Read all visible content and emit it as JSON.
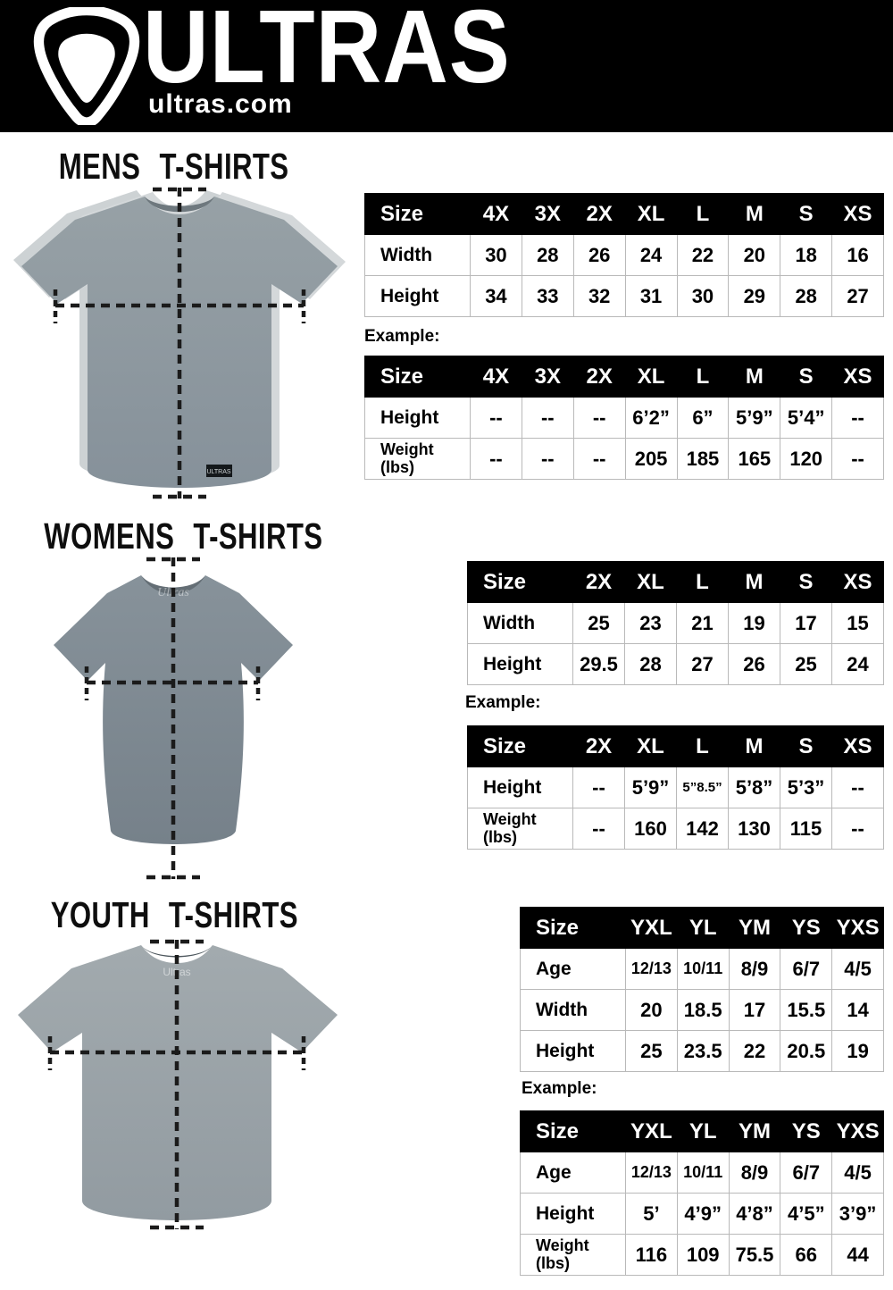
{
  "page": {
    "background": "#ffffff"
  },
  "header": {
    "brand": "ULTRAS",
    "site": "ultras.com",
    "bg_color": "#000000",
    "logo_icon": "pentagon-crest-icon"
  },
  "colors": {
    "table_header_bg": "#000000",
    "table_header_text": "#ffffff",
    "table_border": "#b9b9b9",
    "mens_shirt": "#8d979d",
    "womens_shirt": "#7e898f",
    "youth_shirt": "#99a2a7"
  },
  "sections": [
    {
      "id": "mens",
      "title": "MENS T-SHIRTS",
      "example_label": "Example:",
      "size_table": {
        "header": [
          "Size",
          "4X",
          "3X",
          "2X",
          "XL",
          "L",
          "M",
          "S",
          "XS"
        ],
        "rows": [
          {
            "label": "Width",
            "values": [
              "30",
              "28",
              "26",
              "24",
              "22",
              "20",
              "18",
              "16"
            ]
          },
          {
            "label": "Height",
            "values": [
              "34",
              "33",
              "32",
              "31",
              "30",
              "29",
              "28",
              "27"
            ]
          }
        ]
      },
      "example_table": {
        "header": [
          "Size",
          "4X",
          "3X",
          "2X",
          "XL",
          "L",
          "M",
          "S",
          "XS"
        ],
        "rows": [
          {
            "label": "Height",
            "values": [
              "--",
              "--",
              "--",
              "6’2”",
              "6”",
              "5’9”",
              "5’4”",
              "--"
            ]
          },
          {
            "label": "Weight\n(lbs)",
            "values": [
              "--",
              "--",
              "--",
              "205",
              "185",
              "165",
              "120",
              "--"
            ]
          }
        ]
      }
    },
    {
      "id": "womens",
      "title": "WOMENS T-SHIRTS",
      "example_label": "Example:",
      "size_table": {
        "header": [
          "Size",
          "2X",
          "XL",
          "L",
          "M",
          "S",
          "XS"
        ],
        "rows": [
          {
            "label": "Width",
            "values": [
              "25",
              "23",
              "21",
              "19",
              "17",
              "15"
            ]
          },
          {
            "label": "Height",
            "values": [
              "29.5",
              "28",
              "27",
              "26",
              "25",
              "24"
            ]
          }
        ]
      },
      "example_table": {
        "header": [
          "Size",
          "2X",
          "XL",
          "L",
          "M",
          "S",
          "XS"
        ],
        "rows": [
          {
            "label": "Height",
            "values": [
              "--",
              "5’9”",
              "5”8.5”",
              "5’8”",
              "5’3”",
              "--"
            ]
          },
          {
            "label": "Weight\n(lbs)",
            "values": [
              "--",
              "160",
              "142",
              "130",
              "115",
              "--"
            ]
          }
        ]
      }
    },
    {
      "id": "youth",
      "title": "YOUTH T-SHIRTS",
      "example_label": "Example:",
      "size_table": {
        "header": [
          "Size",
          "YXL",
          "YL",
          "YM",
          "YS",
          "YXS"
        ],
        "rows": [
          {
            "label": "Age",
            "values": [
              "12/13",
              "10/11",
              "8/9",
              "6/7",
              "4/5"
            ]
          },
          {
            "label": "Width",
            "values": [
              "20",
              "18.5",
              "17",
              "15.5",
              "14"
            ]
          },
          {
            "label": "Height",
            "values": [
              "25",
              "23.5",
              "22",
              "20.5",
              "19"
            ]
          }
        ]
      },
      "example_table": {
        "header": [
          "Size",
          "YXL",
          "YL",
          "YM",
          "YS",
          "YXS"
        ],
        "rows": [
          {
            "label": "Age",
            "values": [
              "12/13",
              "10/11",
              "8/9",
              "6/7",
              "4/5"
            ]
          },
          {
            "label": "Height",
            "values": [
              "5’",
              "4’9”",
              "4’8”",
              "4’5”",
              "3’9”"
            ]
          },
          {
            "label": "Weight\n(lbs)",
            "values": [
              "116",
              "109",
              "75.5",
              "66",
              "44"
            ]
          }
        ]
      }
    }
  ]
}
